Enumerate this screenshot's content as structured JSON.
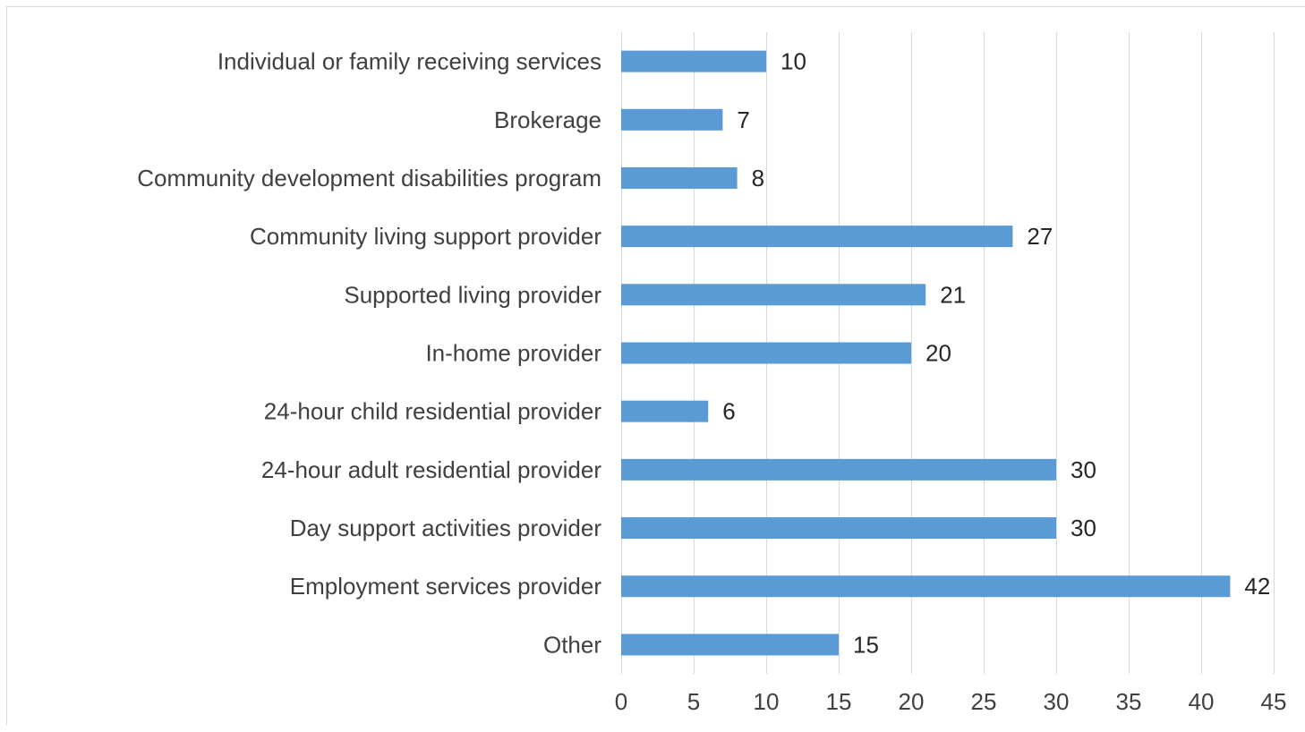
{
  "chart_data": {
    "type": "bar",
    "orientation": "horizontal",
    "title": "",
    "xlabel": "",
    "ylabel": "",
    "categories": [
      "Individual or family receiving services",
      "Brokerage",
      "Community development disabilities program",
      "Community living support provider",
      "Supported living provider",
      "In-home provider",
      "24-hour child residential provider",
      "24-hour adult residential provider",
      "Day support activities provider",
      "Employment services provider",
      "Other"
    ],
    "values": [
      10,
      7,
      8,
      27,
      21,
      20,
      6,
      30,
      30,
      42,
      15
    ],
    "xlim": [
      0,
      45
    ],
    "xticks": [
      0,
      5,
      10,
      15,
      20,
      25,
      30,
      35,
      40,
      45
    ],
    "grid": true,
    "legend": "none",
    "bar_color": "#5b9bd5",
    "grid_color": "#d9d9d9"
  }
}
